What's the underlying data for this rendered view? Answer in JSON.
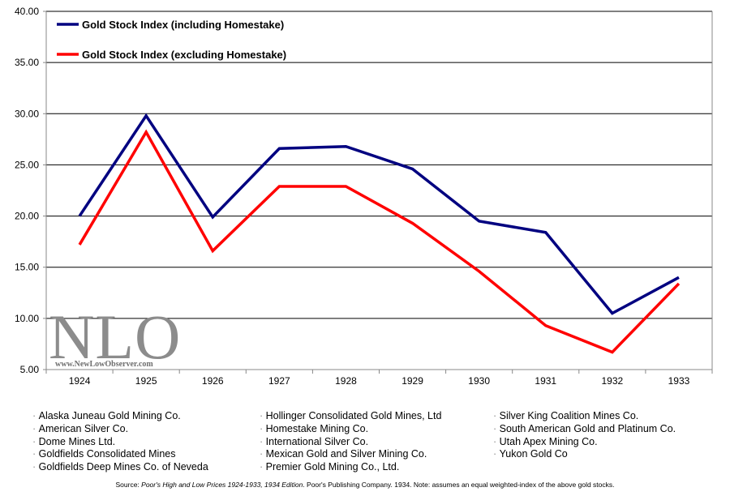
{
  "chart_data": {
    "type": "line",
    "categories": [
      "1924",
      "1925",
      "1926",
      "1927",
      "1928",
      "1929",
      "1930",
      "1931",
      "1932",
      "1933"
    ],
    "series": [
      {
        "name": "Gold Stock Index (including Homestake)",
        "color": "#000080",
        "values": [
          20.0,
          29.8,
          19.9,
          26.6,
          26.8,
          24.6,
          19.5,
          18.4,
          10.5,
          14.0
        ]
      },
      {
        "name": "Gold Stock Index (excluding Homestake)",
        "color": "#ff0000",
        "values": [
          17.2,
          28.2,
          16.6,
          22.9,
          22.9,
          19.3,
          14.6,
          9.3,
          6.7,
          13.4
        ]
      }
    ],
    "ylim": [
      5,
      40
    ],
    "yticks": [
      "5.00",
      "10.00",
      "15.00",
      "20.00",
      "25.00",
      "30.00",
      "35.00",
      "40.00"
    ],
    "grid": true,
    "legend_position": "top-left"
  },
  "watermark": {
    "letters": "NLO",
    "url": "www.NewLowObserver.com"
  },
  "stocks": {
    "col1": [
      "Alaska Juneau Gold Mining Co.",
      "American Silver Co.",
      "Dome Mines Ltd.",
      "Goldfields Consolidated Mines",
      "Goldfields Deep Mines Co. of Neveda"
    ],
    "col2": [
      "Hollinger Consolidated Gold Mines, Ltd",
      "Homestake Mining Co.",
      "International Silver Co.",
      "Mexican Gold and Silver Mining Co.",
      "Premier Gold Mining Co., Ltd."
    ],
    "col3": [
      "Silver King Coalition Mines Co.",
      "South American Gold and Platinum Co.",
      "Utah Apex Mining Co.",
      "Yukon Gold Co"
    ]
  },
  "source": {
    "prefix": "Source: ",
    "title": "Poor's High and Low Prices 1924-1933, 1934 Edition",
    "suffix": ". Poor's Publishing Company. 1934.  Note: assumes an equal weighted-index of the above gold stocks."
  }
}
